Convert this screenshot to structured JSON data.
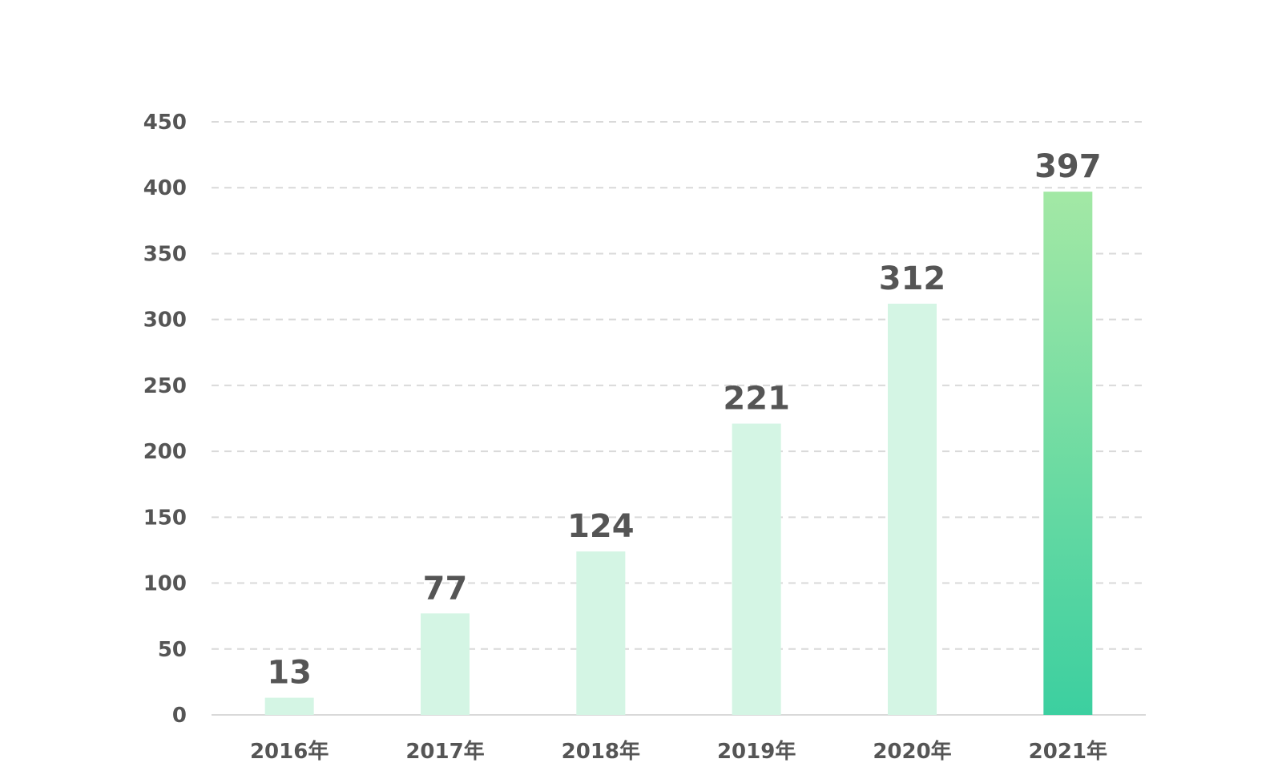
{
  "chart_data": {
    "type": "bar",
    "categories": [
      "2016年",
      "2017年",
      "2018年",
      "2019年",
      "2020年",
      "2021年"
    ],
    "values": [
      13,
      77,
      124,
      221,
      312,
      397
    ],
    "data_labels": [
      "13",
      "77",
      "124",
      "221",
      "312",
      "397"
    ],
    "title": "",
    "xlabel": "",
    "ylabel": "",
    "ylim": [
      0,
      450
    ],
    "yticks": [
      0,
      50,
      100,
      150,
      200,
      250,
      300,
      350,
      400,
      450
    ],
    "ytick_labels": [
      "0",
      "50",
      "100",
      "150",
      "200",
      "250",
      "300",
      "350",
      "400",
      "450"
    ],
    "grid": true,
    "grid_style": "dashed",
    "legend": "none",
    "highlight_index": 5
  },
  "colors": {
    "bar": "#d4f5e4",
    "highlight_top": "#a3e8a5",
    "highlight_bottom": "#3ccfa0",
    "text": "#555555",
    "grid": "#d9d9d9",
    "axis": "#d9d9d9"
  }
}
